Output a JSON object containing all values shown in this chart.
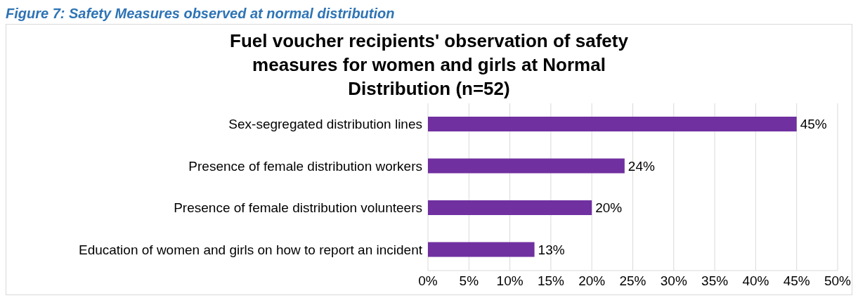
{
  "chart_data": {
    "type": "bar",
    "orientation": "horizontal",
    "title": "Fuel voucher recipients' observation of safety measures for women and girls at Normal Distribution (n=52)",
    "annotations": [
      "Figure 7: Safety Measures observed at normal distribution"
    ],
    "categories": [
      "Sex-segregated distribution lines",
      "Presence of female distribution workers",
      "Presence of female distribution volunteers",
      "Education of women and girls on how to report an incident"
    ],
    "values": [
      45,
      24,
      20,
      13
    ],
    "value_labels": [
      "45%",
      "24%",
      "20%",
      "13%"
    ],
    "color": "#7030a0",
    "xlim": [
      0,
      50
    ],
    "xticks": [
      {
        "value": 0,
        "label": "0%"
      },
      {
        "value": 5,
        "label": "5%"
      },
      {
        "value": 10,
        "label": "10%"
      },
      {
        "value": 15,
        "label": "15%"
      },
      {
        "value": 20,
        "label": "20%"
      },
      {
        "value": 25,
        "label": "25%"
      },
      {
        "value": 30,
        "label": "30%"
      },
      {
        "value": 35,
        "label": "35%"
      },
      {
        "value": 40,
        "label": "40%"
      },
      {
        "value": 45,
        "label": "45%"
      },
      {
        "value": 50,
        "label": "50%"
      }
    ],
    "grid": "x"
  }
}
